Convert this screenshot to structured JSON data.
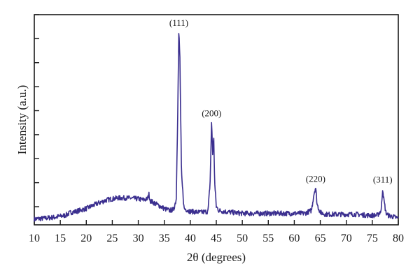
{
  "chart_data": {
    "type": "line",
    "title": "",
    "xlabel": "2θ (degrees)",
    "ylabel": "Intensity (a.u.)",
    "xlim": [
      10,
      80
    ],
    "ylim": [
      0,
      100
    ],
    "x_ticks": [
      10,
      15,
      20,
      25,
      30,
      35,
      40,
      45,
      50,
      55,
      60,
      65,
      70,
      75,
      80
    ],
    "y_tick_labels_shown": false,
    "grid": false,
    "legend": "none",
    "line_color": "#3b2f8f",
    "series": [
      {
        "x": [
          10,
          12,
          14,
          16,
          17,
          18,
          20,
          22,
          24,
          26,
          28,
          30,
          31,
          31.8,
          32.0,
          32.3,
          33,
          34,
          35,
          36,
          36.8,
          37.3,
          37.6,
          37.8,
          38.0,
          38.3,
          38.8,
          40,
          42,
          43.4,
          43.8,
          44.1,
          44.3,
          44.5,
          44.7,
          45.0,
          45.5,
          46.5,
          48,
          50,
          52,
          55,
          58,
          60,
          62,
          63.3,
          63.8,
          64.1,
          64.4,
          65.0,
          66,
          68,
          70,
          72,
          74,
          76,
          76.7,
          77.0,
          77.2,
          77.6,
          78,
          80
        ],
        "y": [
          1.5,
          2.0,
          2.5,
          3.5,
          5.0,
          5.5,
          7.0,
          9.5,
          11.5,
          12.5,
          12.5,
          12.0,
          11.5,
          12.0,
          15.0,
          11.0,
          10.0,
          8.5,
          7.0,
          6.0,
          6.5,
          12.0,
          60.0,
          99.0,
          85.0,
          25.0,
          7.0,
          5.5,
          5.0,
          5.5,
          20.0,
          52.0,
          35.0,
          44.0,
          20.0,
          8.0,
          6.0,
          5.5,
          5.0,
          4.5,
          4.5,
          4.5,
          4.5,
          4.5,
          4.5,
          6.0,
          15.0,
          18.0,
          9.0,
          5.0,
          4.0,
          4.0,
          4.0,
          4.0,
          3.5,
          3.5,
          6.0,
          17.5,
          12.0,
          5.0,
          3.5,
          2.0
        ]
      }
    ],
    "annotations": [
      {
        "text": "(111)",
        "x": 37.8,
        "y": 99.0
      },
      {
        "text": "(200)",
        "x": 44.1,
        "y": 52.0
      },
      {
        "text": "(220)",
        "x": 64.1,
        "y": 18.0
      },
      {
        "text": "(311)",
        "x": 77.0,
        "y": 17.5
      }
    ]
  }
}
